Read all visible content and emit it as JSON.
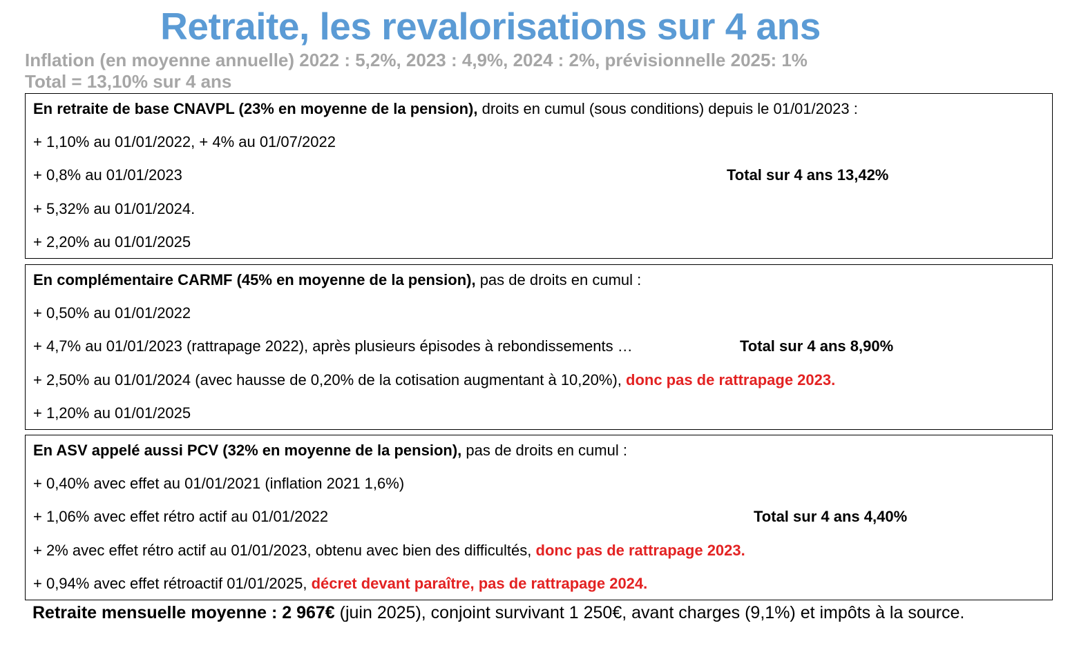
{
  "title": "Retraite, les revalorisations sur 4 ans",
  "inflation_line": "Inflation (en moyenne annuelle) 2022 : 5,2%, 2023 : 4,9%, 2024 : 2%, prévisionnelle 2025: 1%",
  "inflation_total": "Total = 13,10% sur 4 ans",
  "cnavpl": {
    "heading_bold": "En retraite de base CNAVPL (23% en moyenne de la pension),",
    "heading_rest": " droits en cumul (sous conditions) depuis le 01/01/2023 :",
    "items": [
      "+ 1,10% au 01/01/2022, + 4% au 01/07/2022",
      "+ 0,8% au 01/01/2023",
      "+ 5,32% au 01/01/2024.",
      "+ 2,20% au 01/01/2025"
    ],
    "total": "Total sur 4 ans 13,42%"
  },
  "carmf": {
    "heading_bold": "En complémentaire CARMF (45% en moyenne de la pension),",
    "heading_rest": " pas de droits en cumul :",
    "items": [
      "+ 0,50% au 01/01/2022",
      "+ 4,7% au 01/01/2023 (rattrapage 2022), après plusieurs épisodes à rebondissements …",
      "+ 2,50% au 01/01/2024 (avec hausse de 0,20% de la cotisation augmentant à 10,20%), ",
      "+ 1,20% au 01/01/2025"
    ],
    "item3_red": "donc pas de rattrapage 2023.",
    "total": "Total sur 4 ans 8,90%"
  },
  "asv": {
    "heading_bold": "En ASV appelé aussi PCV (32% en moyenne de la pension),",
    "heading_rest": " pas de droits en cumul :",
    "items": [
      "+ 0,40% avec effet au 01/01/2021 (inflation 2021 1,6%)",
      "+ 1,06% avec effet rétro actif au 01/01/2022",
      "+ 2% avec effet rétro actif au 01/01/2023, obtenu avec bien des difficultés, ",
      "+ 0,94% avec effet rétroactif 01/01/2025, "
    ],
    "item3_red": "donc pas de rattrapage 2023.",
    "item4_red": "décret devant paraître, pas de rattrapage 2024.",
    "total": "Total sur 4 ans 4,40%"
  },
  "footer": {
    "bold": "Retraite mensuelle moyenne : 2 967€",
    "rest": " (juin 2025), conjoint survivant 1 250€, avant charges (9,1%) et impôts à la source."
  },
  "colors": {
    "title": "#5b9bd5",
    "subtitle": "#a6a6a6",
    "highlight_red": "#e32222"
  }
}
